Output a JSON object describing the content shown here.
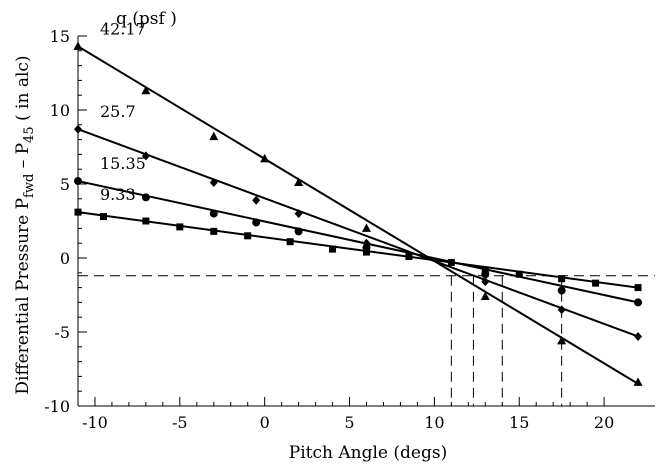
{
  "chart_data": {
    "type": "scatter",
    "xlabel": "Pitch Angle (degs)",
    "ylabel": {
      "main": "Differential Pressure P",
      "sub1": "fwd",
      "dash": " – P",
      "sub2": "45",
      "tail": " ( in alc)"
    },
    "legend_title": "q (psf )",
    "xlim": [
      -11,
      23
    ],
    "ylim": [
      -10,
      15
    ],
    "xticks": [
      -10,
      -5,
      0,
      5,
      10,
      15,
      20
    ],
    "yticks": [
      -10,
      -5,
      0,
      5,
      10,
      15
    ],
    "grid": false,
    "series": [
      {
        "name": "42.17",
        "marker": "triangle",
        "fit": [
          [
            -11,
            14.3
          ],
          [
            22,
            -8.5
          ]
        ],
        "points": [
          [
            -11,
            14.3
          ],
          [
            -7,
            11.3
          ],
          [
            -3,
            8.2
          ],
          [
            0,
            6.7
          ],
          [
            2,
            5.1
          ],
          [
            6,
            2.0
          ],
          [
            13,
            -2.6
          ],
          [
            17.5,
            -5.6
          ],
          [
            22,
            -8.4
          ]
        ]
      },
      {
        "name": "25.7",
        "marker": "diamond",
        "fit": [
          [
            -11,
            8.7
          ],
          [
            22,
            -5.3
          ]
        ],
        "points": [
          [
            -11,
            8.7
          ],
          [
            -7,
            6.9
          ],
          [
            -3,
            5.1
          ],
          [
            -0.5,
            3.9
          ],
          [
            2,
            3.0
          ],
          [
            6,
            1.0
          ],
          [
            13,
            -1.6
          ],
          [
            17.5,
            -3.5
          ],
          [
            22,
            -5.3
          ]
        ]
      },
      {
        "name": "15.35",
        "marker": "circle",
        "fit": [
          [
            -11,
            5.2
          ],
          [
            22,
            -3.0
          ]
        ],
        "points": [
          [
            -11,
            5.2
          ],
          [
            -7,
            4.1
          ],
          [
            -3,
            3.0
          ],
          [
            -0.5,
            2.4
          ],
          [
            2,
            1.8
          ],
          [
            6,
            0.7
          ],
          [
            13,
            -1.1
          ],
          [
            17.5,
            -2.2
          ],
          [
            22,
            -3.0
          ]
        ]
      },
      {
        "name": "9.33",
        "marker": "square",
        "fit": [
          [
            -11,
            3.1
          ],
          [
            22,
            -2.0
          ]
        ],
        "points": [
          [
            -11,
            3.1
          ],
          [
            -9.5,
            2.8
          ],
          [
            -7,
            2.5
          ],
          [
            -5,
            2.1
          ],
          [
            -3,
            1.8
          ],
          [
            -1,
            1.5
          ],
          [
            1.5,
            1.1
          ],
          [
            4,
            0.6
          ],
          [
            6,
            0.4
          ],
          [
            8.5,
            0.1
          ],
          [
            11,
            -0.3
          ],
          [
            13,
            -0.8
          ],
          [
            15,
            -1.1
          ],
          [
            17.5,
            -1.4
          ],
          [
            19.5,
            -1.7
          ],
          [
            22,
            -2.0
          ]
        ]
      }
    ],
    "reference_lines": {
      "horizontal_y": -1.2,
      "vertical_x": [
        11,
        12.3,
        14,
        17.5
      ]
    }
  }
}
